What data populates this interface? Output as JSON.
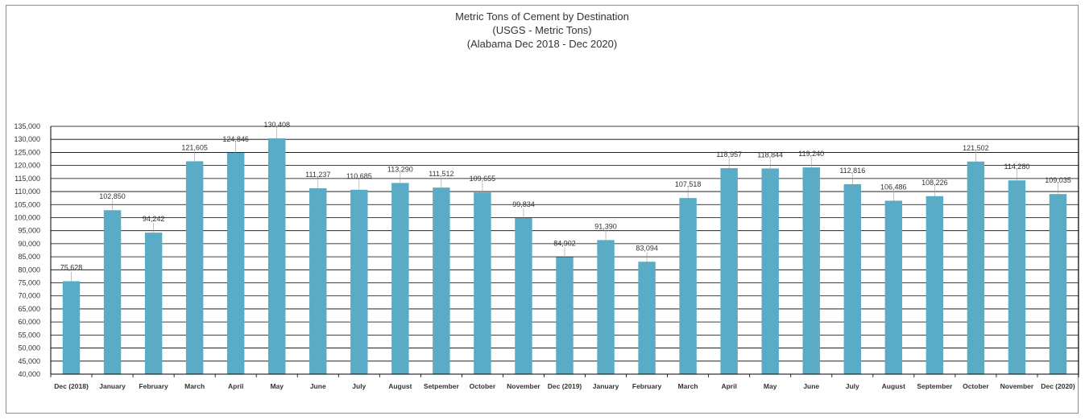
{
  "chart_data": {
    "type": "bar",
    "title": "Metric Tons of Cement by Destination",
    "subtitle": "(USGS - Metric Tons)",
    "subtitle2": "(Alabama Dec 2018 - Dec 2020)",
    "categories": [
      "Dec (2018)",
      "January",
      "February",
      "March",
      "April",
      "May",
      "June",
      "July",
      "August",
      "Setpember",
      "October",
      "November",
      "Dec (2019)",
      "January",
      "February",
      "March",
      "April",
      "May",
      "June",
      "July",
      "August",
      "September",
      "October",
      "November",
      "Dec (2020)"
    ],
    "values": [
      75628,
      102850,
      94242,
      121605,
      124846,
      130408,
      111237,
      110685,
      113290,
      111512,
      109655,
      99834,
      84902,
      91390,
      83094,
      107518,
      118957,
      118844,
      119240,
      112816,
      106486,
      108226,
      121502,
      114280,
      109035
    ],
    "value_labels": [
      "75,628",
      "102,850",
      "94,242",
      "121,605",
      "124,846",
      "130,408",
      "111,237",
      "110,685",
      "113,290",
      "111,512",
      "109,655",
      "99,834",
      "84,902",
      "91,390",
      "83,094",
      "107,518",
      "118,957",
      "118,844",
      "119,240",
      "112,816",
      "106,486",
      "108,226",
      "121,502",
      "114,280",
      "109,035"
    ],
    "ylim": [
      40000,
      135000
    ],
    "yticks": [
      "40,000",
      "45,000",
      "50,000",
      "55,000",
      "60,000",
      "65,000",
      "70,000",
      "75,000",
      "80,000",
      "85,000",
      "90,000",
      "95,000",
      "100,000",
      "105,000",
      "110,000",
      "115,000",
      "120,000",
      "125,000",
      "130,000",
      "135,000"
    ],
    "grid": true,
    "bar_color": "#5aacc6",
    "grid_color": "#000000"
  }
}
